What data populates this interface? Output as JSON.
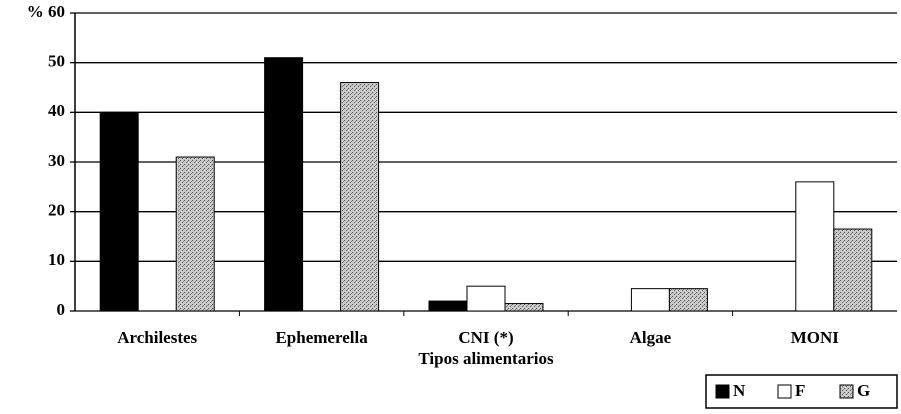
{
  "chart_data": {
    "type": "bar",
    "x_label": "Tipos alimentarios",
    "categories": [
      "Archilestes",
      "Ephemerella",
      "CNI (*)",
      "Algae",
      "MONI"
    ],
    "series": [
      {
        "name": "N",
        "color": "#000000",
        "values": [
          40,
          51,
          2,
          0,
          0
        ]
      },
      {
        "name": "F",
        "color": "#ffffff",
        "values": [
          0,
          0,
          5,
          4.5,
          26
        ]
      },
      {
        "name": "G",
        "color": "#b0b0b0",
        "values": [
          31,
          46,
          1.5,
          4.5,
          16.5
        ]
      }
    ],
    "ylim": [
      0,
      60
    ],
    "yticks": [
      0,
      10,
      20,
      30,
      40,
      50,
      {
        "value": 60,
        "label": "% 60"
      }
    ],
    "grid": true,
    "legend": "bottom-right"
  }
}
